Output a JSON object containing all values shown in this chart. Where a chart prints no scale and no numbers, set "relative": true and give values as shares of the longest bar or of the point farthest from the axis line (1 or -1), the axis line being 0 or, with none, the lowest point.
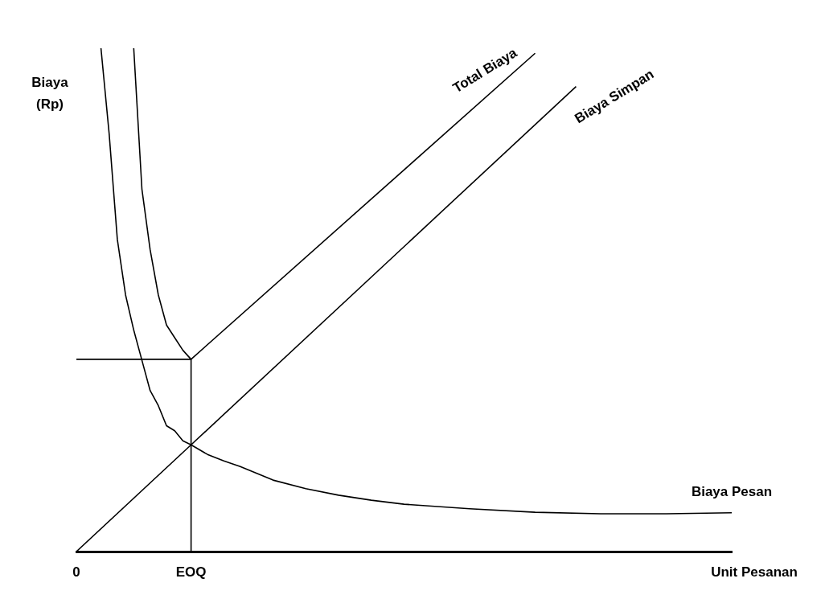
{
  "chart_data": {
    "type": "line",
    "relative": true,
    "xlabel": "Unit Pesanan",
    "ylabel": "Biaya (Rp)",
    "grid": false,
    "legend": false,
    "marker": "none",
    "line_style": "solid",
    "categories": [
      "0",
      null,
      null,
      null,
      null,
      null,
      null,
      null,
      null,
      null,
      null,
      null,
      null,
      null,
      "EOQ",
      null,
      null,
      null,
      null,
      null,
      null,
      null,
      null,
      null,
      null,
      null,
      null,
      null,
      null,
      null,
      null,
      null,
      null,
      null,
      null,
      null,
      null,
      null,
      null,
      null,
      null,
      null,
      null,
      null,
      null,
      null,
      null,
      null,
      null,
      null,
      null,
      null,
      null,
      null,
      null,
      null,
      null,
      null,
      null,
      null,
      null,
      null,
      null,
      null,
      null,
      null,
      null,
      null,
      null,
      null,
      null,
      null,
      null,
      null,
      null,
      null,
      null,
      null,
      null,
      null,
      null
    ],
    "series": [
      {
        "name": "Total Biaya",
        "color": "#000000",
        "values": [
          null,
          null,
          null,
          null,
          null,
          null,
          null,
          1.0,
          0.72,
          0.6,
          0.51,
          0.45,
          0.425,
          0.4,
          0.382,
          null,
          null,
          null,
          null,
          null,
          null,
          null,
          null,
          null,
          null,
          null,
          null,
          null,
          null,
          null,
          null,
          null,
          null,
          null,
          null,
          null,
          null,
          null,
          null,
          null,
          null,
          null,
          null,
          null,
          null,
          null,
          null,
          null,
          null,
          null,
          null,
          null,
          null,
          null,
          null,
          null,
          0.99,
          null,
          null,
          null,
          null,
          null,
          null,
          null,
          null,
          null,
          null,
          null,
          null,
          null,
          null,
          null,
          null,
          null,
          null,
          null,
          null,
          null,
          null,
          null,
          null
        ]
      },
      {
        "name": "Biaya Simpan",
        "color": "#000000",
        "values": [
          0,
          null,
          null,
          null,
          null,
          null,
          null,
          null,
          null,
          null,
          null,
          null,
          null,
          null,
          0.212,
          null,
          null,
          null,
          null,
          null,
          null,
          null,
          null,
          null,
          null,
          null,
          null,
          null,
          null,
          null,
          null,
          null,
          null,
          null,
          null,
          null,
          null,
          null,
          null,
          null,
          null,
          null,
          null,
          null,
          null,
          null,
          null,
          null,
          null,
          null,
          null,
          null,
          null,
          null,
          null,
          null,
          null,
          null,
          null,
          null,
          null,
          0.924,
          null,
          null,
          null,
          null,
          null,
          null,
          null,
          null,
          null,
          null,
          null,
          null,
          null,
          null,
          null,
          null,
          null,
          null,
          null
        ]
      },
      {
        "name": "Biaya Pesan",
        "color": "#000000",
        "values": [
          null,
          null,
          null,
          1.0,
          0.83,
          0.62,
          0.51,
          0.44,
          0.38,
          0.32,
          0.29,
          0.25,
          0.24,
          0.22,
          0.212,
          null,
          0.193,
          null,
          0.18,
          null,
          0.169,
          null,
          null,
          null,
          0.142,
          null,
          null,
          null,
          0.125,
          null,
          null,
          null,
          0.112,
          null,
          null,
          null,
          0.102,
          null,
          null,
          null,
          0.094,
          null,
          null,
          null,
          null,
          null,
          null,
          null,
          0.085,
          null,
          null,
          null,
          null,
          null,
          null,
          null,
          0.078,
          null,
          null,
          null,
          null,
          null,
          null,
          null,
          0.075,
          null,
          null,
          null,
          null,
          null,
          null,
          null,
          0.075,
          null,
          null,
          null,
          null,
          null,
          null,
          null,
          0.077
        ]
      }
    ],
    "ref_lines": [
      {
        "axis": "x",
        "value": "EOQ"
      },
      {
        "axis": "y",
        "value": 0.382
      }
    ]
  }
}
